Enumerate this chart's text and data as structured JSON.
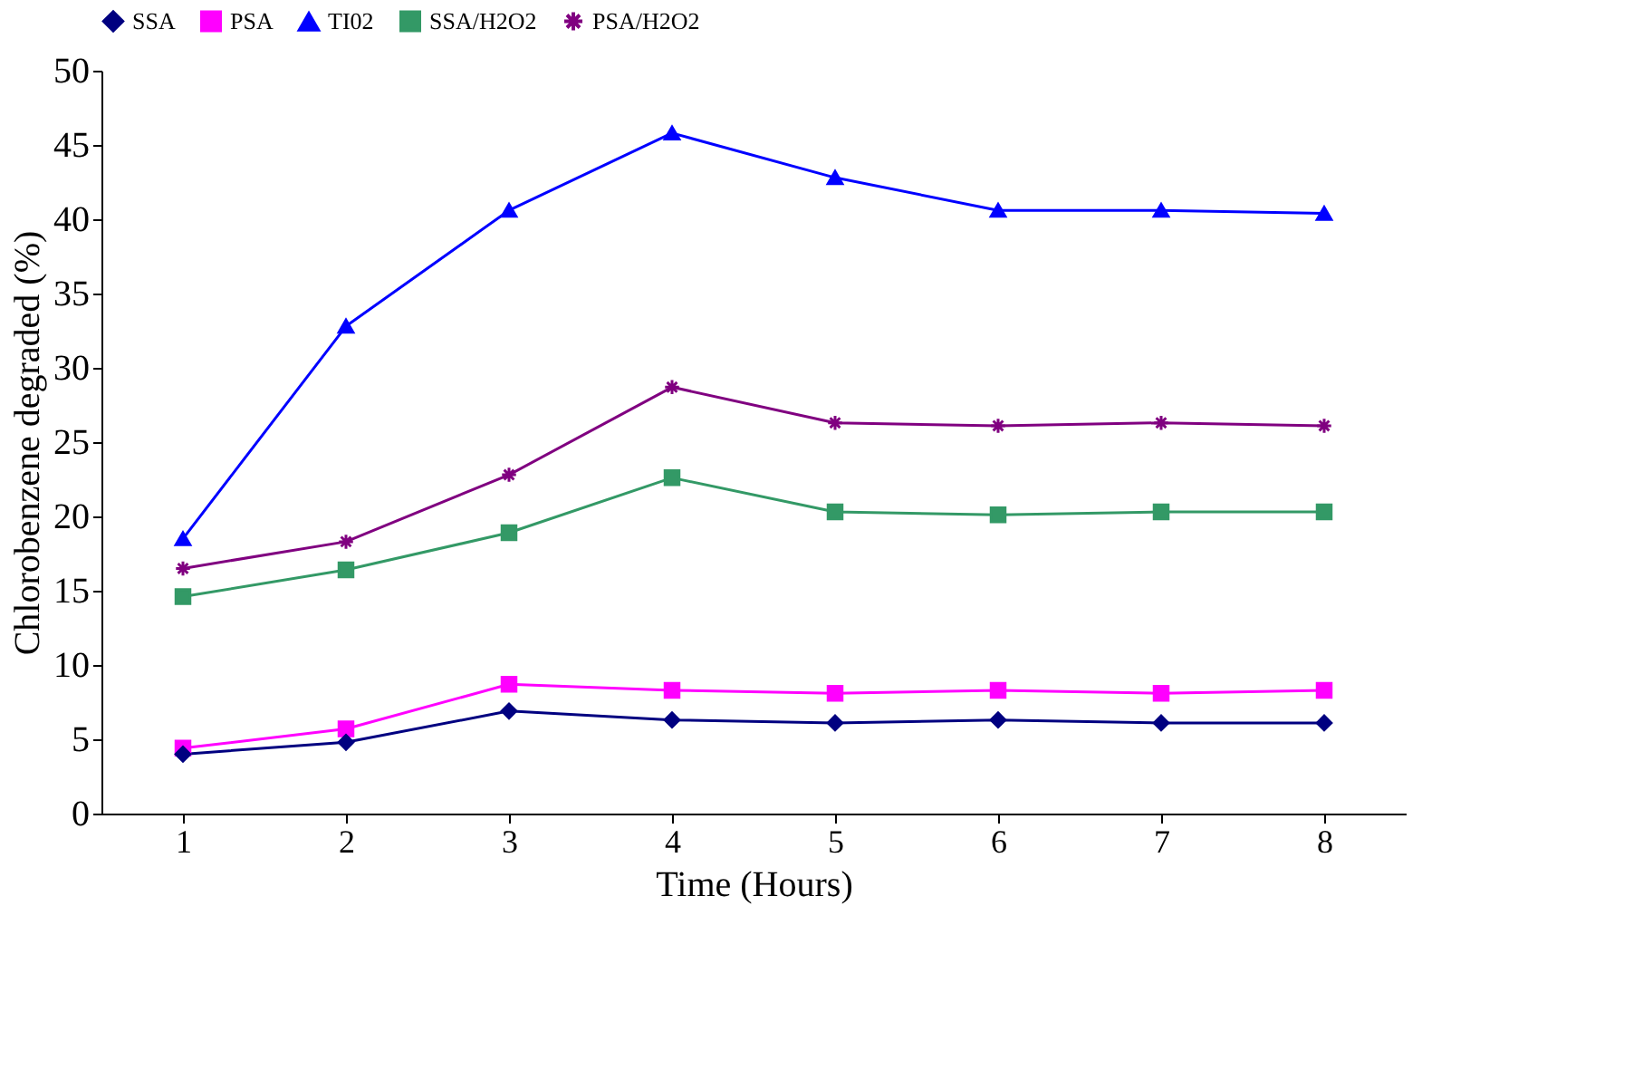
{
  "chart_data": {
    "type": "line",
    "xlabel": "Time (Hours)",
    "ylabel": "Chlorobenzene degraded (%)",
    "categories": [
      "1",
      "2",
      "3",
      "4",
      "5",
      "6",
      "7",
      "8"
    ],
    "ylim": [
      0,
      50
    ],
    "yticks": [
      0,
      5,
      10,
      15,
      20,
      25,
      30,
      35,
      40,
      45,
      50
    ],
    "grid": false,
    "legend": "top",
    "series": [
      {
        "name": "SSA",
        "color": "#000080",
        "marker": "diamond",
        "values": [
          4.0,
          4.8,
          6.9,
          6.3,
          6.1,
          6.3,
          6.1,
          6.1
        ]
      },
      {
        "name": "PSA",
        "color": "#ff00ff",
        "marker": "square",
        "values": [
          4.4,
          5.7,
          8.7,
          8.3,
          8.1,
          8.3,
          8.1,
          8.3
        ]
      },
      {
        "name": "TI02",
        "color": "#0000ff",
        "marker": "triangle",
        "values": [
          18.5,
          32.8,
          40.6,
          45.8,
          42.8,
          40.6,
          40.6,
          40.4
        ]
      },
      {
        "name": "SSA/H2O2",
        "color": "#339966",
        "marker": "square",
        "values": [
          14.6,
          16.4,
          18.9,
          22.6,
          20.3,
          20.1,
          20.3,
          20.3
        ]
      },
      {
        "name": "PSA/H2O2",
        "color": "#800080",
        "marker": "cross",
        "values": [
          16.5,
          18.3,
          22.8,
          28.7,
          26.3,
          26.1,
          26.3,
          26.1
        ]
      }
    ]
  }
}
